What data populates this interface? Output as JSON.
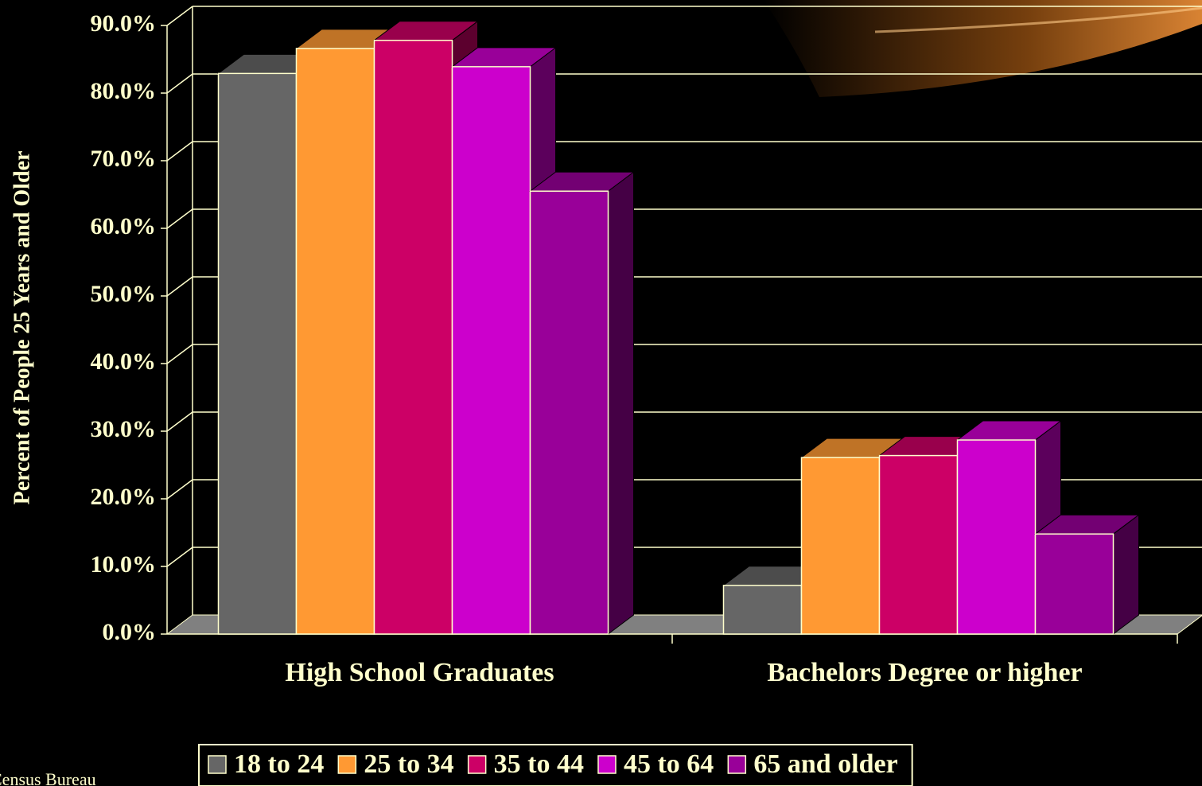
{
  "chart_data": {
    "type": "bar3d",
    "y_label": "Percent of People 25 Years and Older",
    "categories": [
      "High School Graduates",
      "Bachelors Degree or higher"
    ],
    "series": [
      {
        "name": "18 to 24",
        "color": "#666666",
        "values": [
          82.9,
          7.2
        ]
      },
      {
        "name": "25 to 34",
        "color": "#ff9933",
        "values": [
          86.6,
          26.1
        ]
      },
      {
        "name": "35 to 44",
        "color": "#cc0066",
        "values": [
          87.8,
          26.4
        ]
      },
      {
        "name": "45 to 64",
        "color": "#cc00cc",
        "values": [
          83.9,
          28.7
        ]
      },
      {
        "name": "65 and older",
        "color": "#990099",
        "values": [
          65.5,
          14.8
        ]
      }
    ],
    "ylim": [
      0,
      90
    ],
    "yticks": [
      {
        "value": 0,
        "label": "0.0%"
      },
      {
        "value": 10,
        "label": "10.0%"
      },
      {
        "value": 20,
        "label": "20.0%"
      },
      {
        "value": 30,
        "label": "30.0%"
      },
      {
        "value": 40,
        "label": "40.0%"
      },
      {
        "value": 50,
        "label": "50.0%"
      },
      {
        "value": 60,
        "label": "60.0%"
      },
      {
        "value": 70,
        "label": "70.0%"
      },
      {
        "value": 80,
        "label": "80.0%"
      },
      {
        "value": 90,
        "label": "90.0%"
      }
    ],
    "grid": true,
    "legend": "bottom",
    "source": "Census Bureau"
  }
}
